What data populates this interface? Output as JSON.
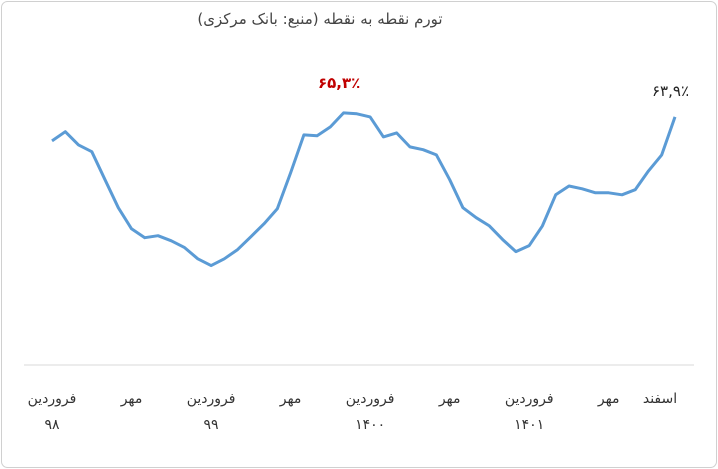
{
  "chart_data": {
    "type": "line",
    "title": "تورم نقطه به نقطه (منبع: بانک مرکزی)",
    "categories": [
      "فروردین ۹۸",
      null,
      null,
      null,
      null,
      null,
      "مهر",
      null,
      null,
      null,
      null,
      null,
      "فروردین ۹۹",
      null,
      null,
      null,
      null,
      null,
      "مهر",
      null,
      null,
      null,
      null,
      null,
      "فروردین ۱۴۰۰",
      null,
      null,
      null,
      null,
      null,
      "مهر",
      null,
      null,
      null,
      null,
      null,
      "فروردین ۱۴۰۱",
      null,
      null,
      null,
      null,
      null,
      "مهر",
      null,
      null,
      null,
      null,
      "اسفند"
    ],
    "series": [
      {
        "color": "#5b9bd5",
        "values": [
          55.5,
          58.7,
          54.1,
          51.7,
          41.9,
          32.1,
          24.7,
          21.6,
          22.3,
          20.5,
          18.1,
          14.2,
          11.8,
          14.2,
          17.4,
          21.9,
          26.5,
          31.7,
          44.3,
          57.6,
          57.3,
          60.4,
          65.3,
          65.0,
          63.9,
          56.9,
          58.3,
          53.4,
          52.4,
          50.6,
          41.9,
          32.1,
          28.6,
          25.7,
          20.9,
          16.7,
          18.8,
          25.7,
          36.6,
          39.7,
          38.7,
          37.3,
          37.3,
          36.6,
          38.4,
          45.0,
          50.6,
          63.9
        ]
      }
    ],
    "annotations": [
      {
        "text": "۶۵,۳٪",
        "color": "#c00000"
      },
      {
        "text": "۶۳,۹٪",
        "color": "#222222"
      }
    ],
    "ylim": [
      -20,
      90
    ]
  }
}
